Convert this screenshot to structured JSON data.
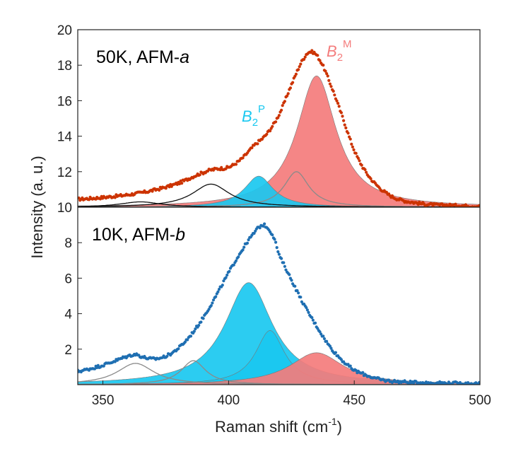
{
  "chart_data": {
    "type": "scatter",
    "xlabel_main": "Raman shift (cm",
    "xlabel_sup": "-1",
    "xlabel_end": ")",
    "ylabel": "Intensity (a. u.)",
    "xlim": [
      340,
      500
    ],
    "ylim": [
      0,
      20
    ],
    "x_ticks": [
      350,
      400,
      450,
      500
    ],
    "y_ticks": [
      2,
      4,
      6,
      8,
      10,
      12,
      14,
      16,
      18,
      20
    ],
    "panel_divider_y": 10,
    "panels": [
      {
        "label_main": "50K, AFM-",
        "label_italic": "a",
        "offset": 10,
        "data_color": "#cc3300",
        "data_points_x": [
          340,
          350,
          360,
          370,
          380,
          390,
          395,
          400,
          405,
          410,
          415,
          420,
          425,
          430,
          433,
          436,
          440,
          445,
          450,
          455,
          460,
          465,
          470,
          480,
          490,
          500
        ],
        "data_points_y": [
          10.45,
          10.55,
          10.7,
          10.95,
          11.35,
          11.95,
          12.15,
          12.25,
          12.7,
          13.45,
          14.1,
          15.2,
          16.9,
          18.4,
          18.75,
          18.35,
          17.1,
          15.2,
          13.2,
          11.9,
          11.1,
          10.6,
          10.35,
          10.15,
          10.1,
          10.05
        ],
        "components": [
          {
            "name": "B2M",
            "label_main": "B",
            "label_sub": "2",
            "label_sup": "M",
            "color": "#f47c7c",
            "filled": true,
            "center": 435,
            "height": 7.4,
            "width": 9.5
          },
          {
            "name": "B2P",
            "label_main": "B",
            "label_sub": "2",
            "label_sup": "P",
            "color": "#1ac8f0",
            "filled": true,
            "center": 412,
            "height": 1.75,
            "width": 7
          },
          {
            "name": "gray-shoulder",
            "color": "#8a8a8a",
            "filled": false,
            "center": 427,
            "height": 2.0,
            "width": 6
          },
          {
            "name": "black-mode-393",
            "color": "#111111",
            "filled": false,
            "center": 393,
            "height": 1.3,
            "width": 9
          },
          {
            "name": "black-mode-365",
            "color": "#111111",
            "filled": false,
            "center": 365,
            "height": 0.3,
            "width": 10
          }
        ]
      },
      {
        "label_main": "10K, AFM-",
        "label_italic": "b",
        "offset": 0,
        "data_color": "#1f6fb2",
        "data_points_x": [
          340,
          345,
          350,
          355,
          360,
          363,
          366,
          370,
          375,
          380,
          385,
          390,
          395,
          400,
          405,
          410,
          413,
          415,
          418,
          420,
          425,
          430,
          435,
          440,
          445,
          450,
          460,
          470,
          480,
          490,
          500
        ],
        "data_points_y": [
          0.75,
          0.9,
          1.1,
          1.35,
          1.6,
          1.7,
          1.55,
          1.45,
          1.6,
          2.05,
          2.8,
          3.8,
          5.0,
          6.3,
          7.5,
          8.5,
          8.95,
          8.9,
          8.3,
          7.3,
          5.9,
          4.5,
          3.3,
          2.2,
          1.4,
          0.8,
          0.3,
          0.15,
          0.1,
          0.08,
          0.05
        ],
        "components": [
          {
            "name": "B2P-main",
            "color": "#1ac8f0",
            "filled": true,
            "center": 408,
            "height": 5.75,
            "width": 11.5
          },
          {
            "name": "B2P-shoulder",
            "color": "#1ac8f0",
            "filled": true,
            "center": 416.5,
            "height": 3.05,
            "width": 7
          },
          {
            "name": "B2M",
            "color": "#f47c7c",
            "filled": true,
            "center": 435,
            "height": 1.8,
            "width": 13
          },
          {
            "name": "gray-mode-363",
            "color": "#8a8a8a",
            "filled": false,
            "center": 363,
            "height": 1.2,
            "width": 9
          },
          {
            "name": "gray-mode-386",
            "color": "#8a8a8a",
            "filled": false,
            "center": 386,
            "height": 1.35,
            "width": 6
          }
        ]
      }
    ]
  }
}
